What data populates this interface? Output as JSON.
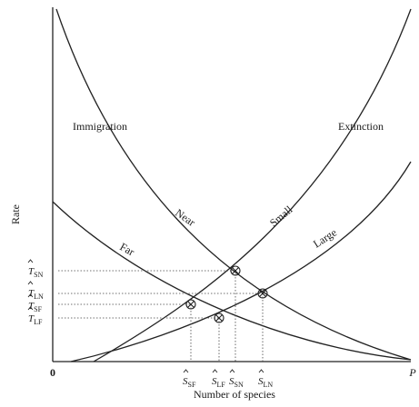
{
  "chart_data": {
    "type": "line",
    "xlabel": "Number of species",
    "ylabel": "Rate",
    "x_axis_start": "0",
    "x_axis_end": "P",
    "curves": [
      {
        "label": "Immigration",
        "group": "immigration"
      },
      {
        "label": "Near",
        "group": "immigration"
      },
      {
        "label": "Far",
        "group": "immigration"
      },
      {
        "label": "Extinction",
        "group": "extinction"
      },
      {
        "label": "Small",
        "group": "extinction"
      },
      {
        "label": "Large",
        "group": "extinction"
      }
    ],
    "equilibria": [
      {
        "combo": "SN",
        "t_label": "T",
        "t_sub": "SN",
        "s_label": "S",
        "s_sub": "SN"
      },
      {
        "combo": "LN",
        "t_label": "T",
        "t_sub": "LN",
        "s_label": "S",
        "s_sub": "LN"
      },
      {
        "combo": "SF",
        "t_label": "T",
        "t_sub": "SF",
        "s_label": "S",
        "s_sub": "SF"
      },
      {
        "combo": "LF",
        "t_label": "T",
        "t_sub": "LF",
        "s_label": "S",
        "s_sub": "LF"
      }
    ]
  }
}
